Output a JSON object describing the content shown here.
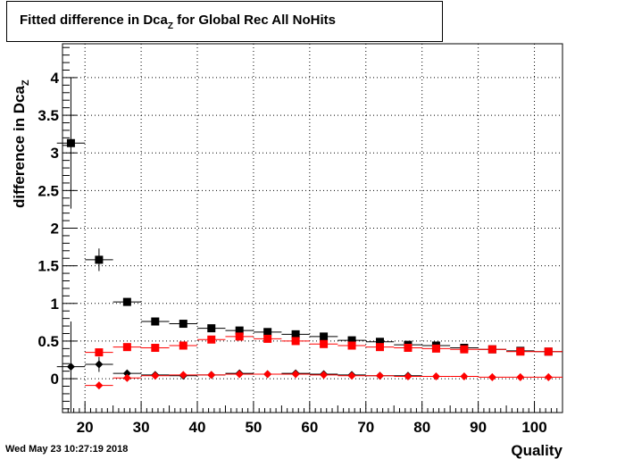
{
  "title": {
    "prefix": "Fitted difference in Dca",
    "subscript": "Z",
    "suffix": " for Global Rec All NoHits"
  },
  "timestamp": "Wed May 23 10:27:19 2018",
  "colors": {
    "series_black": "#000000",
    "series_red": "#ff0000",
    "grid": "#000000",
    "background": "#ffffff"
  },
  "chart_data": {
    "type": "scatter",
    "xlabel": "Quality",
    "ylabel": "difference in Dca",
    "ylabel_subscript": "Z",
    "xlim": [
      16,
      105
    ],
    "ylim": [
      -0.45,
      4.45
    ],
    "grid": true,
    "x_ticks": [
      20,
      30,
      40,
      50,
      60,
      70,
      80,
      90,
      100
    ],
    "x_tick_labels": [
      "20",
      "30",
      "40",
      "50",
      "60",
      "70",
      "80",
      "90",
      "100"
    ],
    "y_ticks": [
      0,
      0.5,
      1,
      1.5,
      2,
      2.5,
      3,
      3.5,
      4
    ],
    "y_tick_labels": [
      "0",
      "0.5",
      "1",
      "1.5",
      "2",
      "2.5",
      "3",
      "3.5",
      "4"
    ],
    "series": [
      {
        "marker": "square",
        "color": "#000000",
        "xerr": 2.5,
        "points": [
          {
            "x": 17.5,
            "y": 3.13,
            "yerr": 0.87
          },
          {
            "x": 22.5,
            "y": 1.58,
            "yerr": 0.15
          },
          {
            "x": 27.5,
            "y": 1.02,
            "yerr": 0.05
          },
          {
            "x": 32.5,
            "y": 0.76,
            "yerr": 0.03
          },
          {
            "x": 37.5,
            "y": 0.73,
            "yerr": 0.02
          },
          {
            "x": 42.5,
            "y": 0.67,
            "yerr": 0.02
          },
          {
            "x": 47.5,
            "y": 0.64,
            "yerr": 0.02
          },
          {
            "x": 52.5,
            "y": 0.62,
            "yerr": 0.02
          },
          {
            "x": 57.5,
            "y": 0.59,
            "yerr": 0.02
          },
          {
            "x": 62.5,
            "y": 0.56,
            "yerr": 0.02
          },
          {
            "x": 67.5,
            "y": 0.51,
            "yerr": 0.02
          },
          {
            "x": 72.5,
            "y": 0.49,
            "yerr": 0.02
          },
          {
            "x": 77.5,
            "y": 0.45,
            "yerr": 0.02
          },
          {
            "x": 82.5,
            "y": 0.44,
            "yerr": 0.02
          },
          {
            "x": 87.5,
            "y": 0.41,
            "yerr": 0.02
          },
          {
            "x": 92.5,
            "y": 0.39,
            "yerr": 0.02
          },
          {
            "x": 97.5,
            "y": 0.37,
            "yerr": 0.02
          },
          {
            "x": 102.5,
            "y": 0.36,
            "yerr": 0.02
          }
        ]
      },
      {
        "marker": "square",
        "color": "#ff0000",
        "xerr": 2.5,
        "points": [
          {
            "x": 22.5,
            "y": 0.35,
            "yerr": 0.05
          },
          {
            "x": 27.5,
            "y": 0.42,
            "yerr": 0.03
          },
          {
            "x": 32.5,
            "y": 0.41,
            "yerr": 0.02
          },
          {
            "x": 37.5,
            "y": 0.44,
            "yerr": 0.02
          },
          {
            "x": 42.5,
            "y": 0.52,
            "yerr": 0.02
          },
          {
            "x": 47.5,
            "y": 0.56,
            "yerr": 0.02
          },
          {
            "x": 52.5,
            "y": 0.53,
            "yerr": 0.02
          },
          {
            "x": 57.5,
            "y": 0.5,
            "yerr": 0.02
          },
          {
            "x": 62.5,
            "y": 0.46,
            "yerr": 0.02
          },
          {
            "x": 67.5,
            "y": 0.44,
            "yerr": 0.02
          },
          {
            "x": 72.5,
            "y": 0.42,
            "yerr": 0.02
          },
          {
            "x": 77.5,
            "y": 0.41,
            "yerr": 0.02
          },
          {
            "x": 82.5,
            "y": 0.4,
            "yerr": 0.02
          },
          {
            "x": 87.5,
            "y": 0.39,
            "yerr": 0.02
          },
          {
            "x": 92.5,
            "y": 0.39,
            "yerr": 0.02
          },
          {
            "x": 97.5,
            "y": 0.36,
            "yerr": 0.02
          },
          {
            "x": 102.5,
            "y": 0.36,
            "yerr": 0.02
          }
        ]
      },
      {
        "marker": "diamond",
        "color": "#000000",
        "xerr": 2.5,
        "points": [
          {
            "x": 17.5,
            "y": 0.16,
            "yerr": 0.6
          },
          {
            "x": 22.5,
            "y": 0.19,
            "yerr": 0.1
          },
          {
            "x": 27.5,
            "y": 0.07,
            "yerr": 0.03
          },
          {
            "x": 32.5,
            "y": 0.05,
            "yerr": 0.02
          },
          {
            "x": 37.5,
            "y": 0.04,
            "yerr": 0.02
          },
          {
            "x": 42.5,
            "y": 0.05,
            "yerr": 0.02
          },
          {
            "x": 47.5,
            "y": 0.07,
            "yerr": 0.02
          },
          {
            "x": 52.5,
            "y": 0.06,
            "yerr": 0.02
          },
          {
            "x": 57.5,
            "y": 0.07,
            "yerr": 0.02
          },
          {
            "x": 62.5,
            "y": 0.06,
            "yerr": 0.02
          },
          {
            "x": 67.5,
            "y": 0.05,
            "yerr": 0.02
          },
          {
            "x": 72.5,
            "y": 0.04,
            "yerr": 0.02
          },
          {
            "x": 77.5,
            "y": 0.04,
            "yerr": 0.02
          }
        ]
      },
      {
        "marker": "diamond",
        "color": "#ff0000",
        "xerr": 2.5,
        "points": [
          {
            "x": 22.5,
            "y": -0.09,
            "yerr": 0.03
          },
          {
            "x": 27.5,
            "y": 0.01,
            "yerr": 0.02
          },
          {
            "x": 32.5,
            "y": 0.04,
            "yerr": 0.02
          },
          {
            "x": 37.5,
            "y": 0.05,
            "yerr": 0.02
          },
          {
            "x": 42.5,
            "y": 0.05,
            "yerr": 0.02
          },
          {
            "x": 47.5,
            "y": 0.06,
            "yerr": 0.02
          },
          {
            "x": 52.5,
            "y": 0.06,
            "yerr": 0.02
          },
          {
            "x": 57.5,
            "y": 0.06,
            "yerr": 0.02
          },
          {
            "x": 62.5,
            "y": 0.05,
            "yerr": 0.02
          },
          {
            "x": 67.5,
            "y": 0.04,
            "yerr": 0.02
          },
          {
            "x": 72.5,
            "y": 0.04,
            "yerr": 0.02
          },
          {
            "x": 77.5,
            "y": 0.03,
            "yerr": 0.02
          },
          {
            "x": 82.5,
            "y": 0.03,
            "yerr": 0.02
          },
          {
            "x": 87.5,
            "y": 0.03,
            "yerr": 0.02
          },
          {
            "x": 92.5,
            "y": 0.02,
            "yerr": 0.02
          },
          {
            "x": 97.5,
            "y": 0.02,
            "yerr": 0.02
          },
          {
            "x": 102.5,
            "y": 0.02,
            "yerr": 0.02
          }
        ]
      }
    ]
  }
}
